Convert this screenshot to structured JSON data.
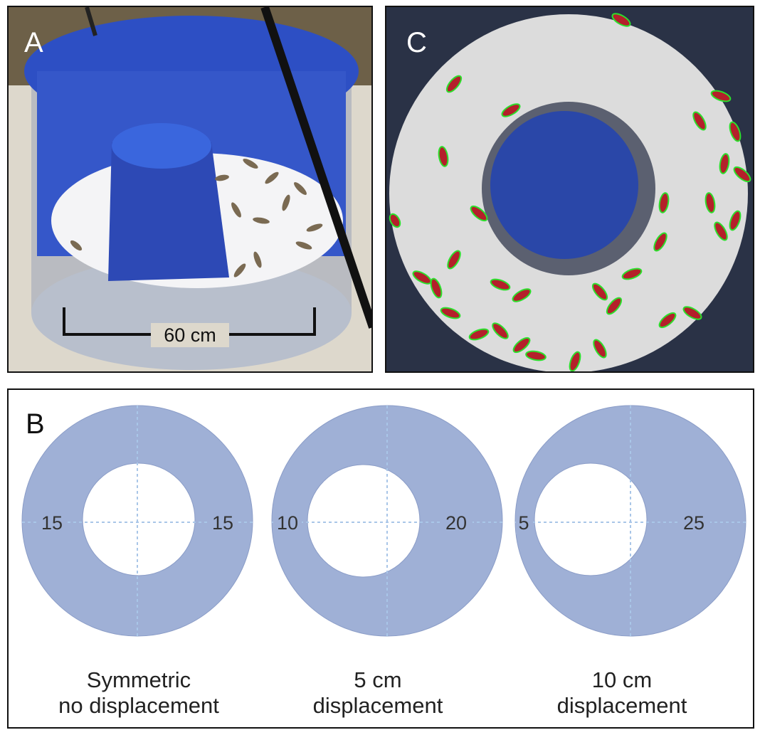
{
  "panels": {
    "a": {
      "letter": "A",
      "scale_label": "60 cm"
    },
    "c": {
      "letter": "C"
    },
    "b": {
      "letter": "B",
      "rings": [
        {
          "left_value": "15",
          "right_value": "15",
          "caption_line1": "Symmetric",
          "caption_line2": "no displacement"
        },
        {
          "left_value": "10",
          "right_value": "20",
          "caption_line1": "5 cm",
          "caption_line2": "displacement"
        },
        {
          "left_value": "5",
          "right_value": "25",
          "caption_line1": "10 cm",
          "caption_line2": "displacement"
        }
      ]
    }
  },
  "colors": {
    "ring_fill": "#9fb0d6",
    "ring_stroke": "#8a9cc7",
    "guide_lines": "#a9c6e8",
    "arena_blue": "#2f4bb8",
    "text_dark": "#333333"
  }
}
